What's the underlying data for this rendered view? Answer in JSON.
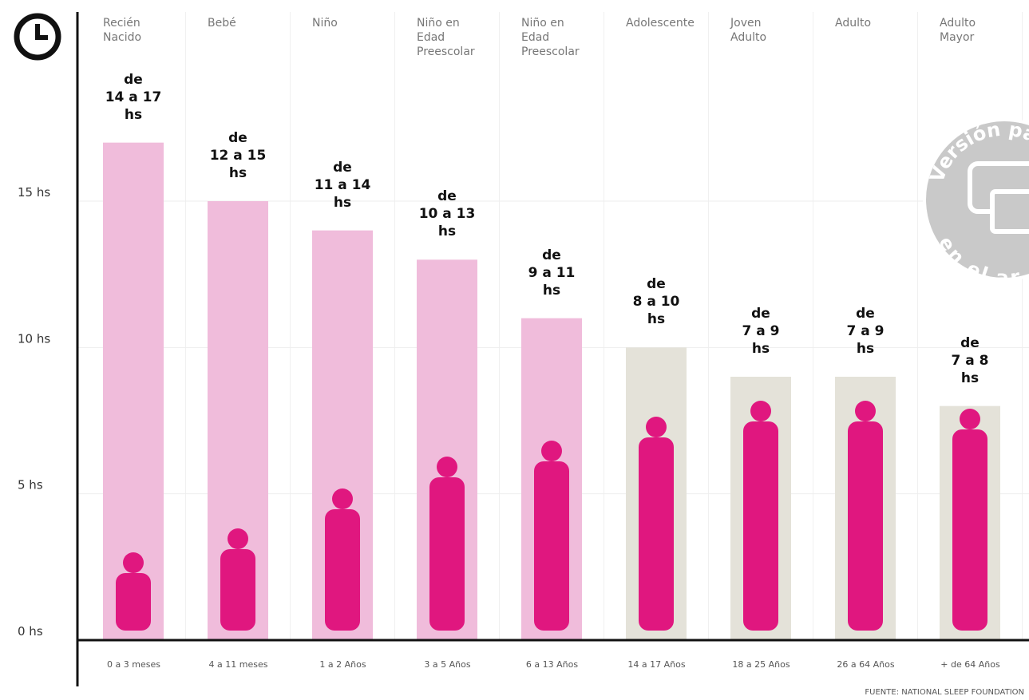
{
  "chart_data": {
    "type": "bar",
    "categories": [
      "Recién\nNacido",
      "Bebé",
      "Niño",
      "Niño en\nEdad\nPreescolar",
      "Niño en\nEdad\nPreescolar",
      "Adolescente",
      "Joven\nAdulto",
      "Adulto",
      "Adulto\nMayor"
    ],
    "age_ranges": [
      "0 a 3 meses",
      "4 a 11 meses",
      "1 a 2 Años",
      "3 a 5 Años",
      "6 a 13 Años",
      "14 a 17 Años",
      "18 a 25 Años",
      "26 a 64 Años",
      "+ de 64 Años"
    ],
    "values": [
      17,
      15,
      14,
      13,
      11,
      10,
      9,
      9,
      8
    ],
    "value_labels": [
      "de\n14 a 17\nhs",
      "de\n12 a 15\nhs",
      "de\n11 a 14\nhs",
      "de\n10 a 13\nhs",
      "de\n9 a 11\nhs",
      "de\n8 a 10\nhs",
      "de\n7 a 9\nhs",
      "de\n7 a 9\nhs",
      "de\n7 a 8\nhs"
    ],
    "colors": [
      "#f0bcdb",
      "#f0bcdb",
      "#f0bcdb",
      "#f0bcdb",
      "#f0bcdb",
      "#e4e2d9",
      "#e4e2d9",
      "#e4e2d9",
      "#e4e2d9"
    ],
    "ylim": [
      0,
      15
    ],
    "yticks": [
      {
        "value": 0,
        "label": "0 hs"
      },
      {
        "value": 5,
        "label": "5 hs"
      },
      {
        "value": 10,
        "label": "10 hs"
      },
      {
        "value": 15,
        "label": "15 hs"
      }
    ],
    "grid": true,
    "source": "FUENTE: NATIONAL SLEEP FOUNDATION",
    "badge": {
      "top": "Versión para",
      "bottom": "en el ar"
    }
  }
}
